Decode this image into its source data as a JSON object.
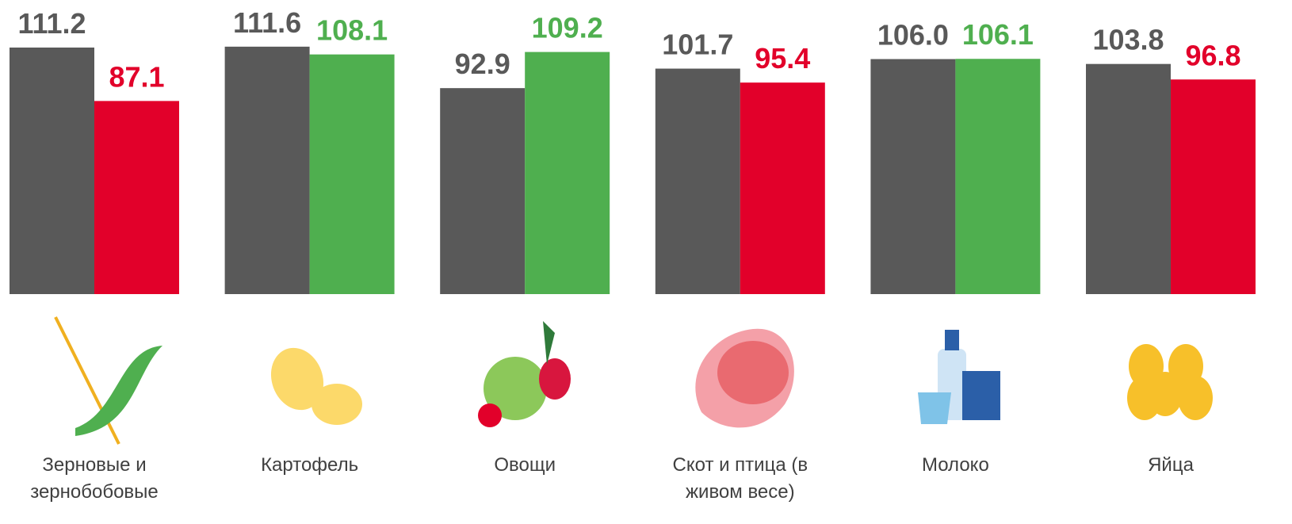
{
  "chart_data": {
    "type": "bar",
    "categories": [
      "Зерновые и зернобобовые",
      "Картофель",
      "Овощи",
      "Скот и птица (в живом весе)",
      "Молоко",
      "Яйца"
    ],
    "series": [
      {
        "color": "#595959",
        "values": [
          111.2,
          111.6,
          92.9,
          101.7,
          106.0,
          103.8
        ],
        "value_labels": [
          "111.2",
          "111.6",
          "92.9",
          "101.7",
          "106.0",
          "103.8"
        ]
      },
      {
        "colors": [
          "#e2002a",
          "#4faf4f",
          "#4faf4f",
          "#e2002a",
          "#4faf4f",
          "#e2002a"
        ],
        "values": [
          87.1,
          108.1,
          109.2,
          95.4,
          106.1,
          96.8
        ],
        "value_labels": [
          "87.1",
          "108.1",
          "109.2",
          "95.4",
          "106.1",
          "96.8"
        ]
      }
    ],
    "ylim": [
      0,
      130
    ]
  }
}
